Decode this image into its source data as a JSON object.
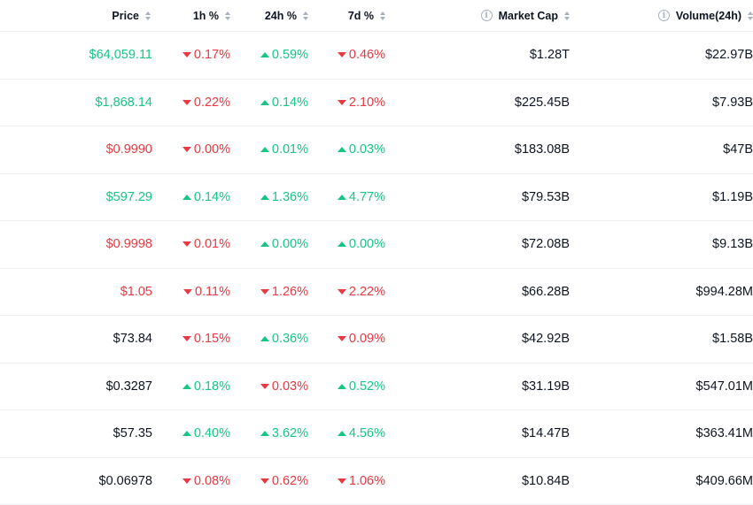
{
  "columns": {
    "price": "Price",
    "h1": "1h %",
    "h24": "24h %",
    "d7": "7d %",
    "market_cap": "Market Cap",
    "volume": "Volume(24h)"
  },
  "colors": {
    "up": "#16c784",
    "down": "#ea3943",
    "neutral": "#0d1421"
  },
  "rows": [
    {
      "price": "$64,059.11",
      "price_trend": "up",
      "h1": "0.17%",
      "h1_dir": "down",
      "h24": "0.59%",
      "h24_dir": "up",
      "d7": "0.46%",
      "d7_dir": "down",
      "market_cap": "$1.28T",
      "volume": "$22.97B"
    },
    {
      "price": "$1,868.14",
      "price_trend": "up",
      "h1": "0.22%",
      "h1_dir": "down",
      "h24": "0.14%",
      "h24_dir": "up",
      "d7": "2.10%",
      "d7_dir": "down",
      "market_cap": "$225.45B",
      "volume": "$7.93B"
    },
    {
      "price": "$0.9990",
      "price_trend": "down",
      "h1": "0.00%",
      "h1_dir": "down",
      "h24": "0.01%",
      "h24_dir": "up",
      "d7": "0.03%",
      "d7_dir": "up",
      "market_cap": "$183.08B",
      "volume": "$47B"
    },
    {
      "price": "$597.29",
      "price_trend": "up",
      "h1": "0.14%",
      "h1_dir": "up",
      "h24": "1.36%",
      "h24_dir": "up",
      "d7": "4.77%",
      "d7_dir": "up",
      "market_cap": "$79.53B",
      "volume": "$1.19B"
    },
    {
      "price": "$0.9998",
      "price_trend": "down",
      "h1": "0.01%",
      "h1_dir": "down",
      "h24": "0.00%",
      "h24_dir": "up",
      "d7": "0.00%",
      "d7_dir": "up",
      "market_cap": "$72.08B",
      "volume": "$9.13B"
    },
    {
      "price": "$1.05",
      "price_trend": "down",
      "h1": "0.11%",
      "h1_dir": "down",
      "h24": "1.26%",
      "h24_dir": "down",
      "d7": "2.22%",
      "d7_dir": "down",
      "market_cap": "$66.28B",
      "volume": "$994.28M"
    },
    {
      "price": "$73.84",
      "price_trend": "neutral",
      "h1": "0.15%",
      "h1_dir": "down",
      "h24": "0.36%",
      "h24_dir": "up",
      "d7": "0.09%",
      "d7_dir": "down",
      "market_cap": "$42.92B",
      "volume": "$1.58B"
    },
    {
      "price": "$0.3287",
      "price_trend": "neutral",
      "h1": "0.18%",
      "h1_dir": "up",
      "h24": "0.03%",
      "h24_dir": "down",
      "d7": "0.52%",
      "d7_dir": "up",
      "market_cap": "$31.19B",
      "volume": "$547.01M"
    },
    {
      "price": "$57.35",
      "price_trend": "neutral",
      "h1": "0.40%",
      "h1_dir": "up",
      "h24": "3.62%",
      "h24_dir": "up",
      "d7": "4.56%",
      "d7_dir": "up",
      "market_cap": "$14.47B",
      "volume": "$363.41M"
    },
    {
      "price": "$0.06978",
      "price_trend": "neutral",
      "h1": "0.08%",
      "h1_dir": "down",
      "h24": "0.62%",
      "h24_dir": "down",
      "d7": "1.06%",
      "d7_dir": "down",
      "market_cap": "$10.84B",
      "volume": "$409.66M"
    }
  ]
}
